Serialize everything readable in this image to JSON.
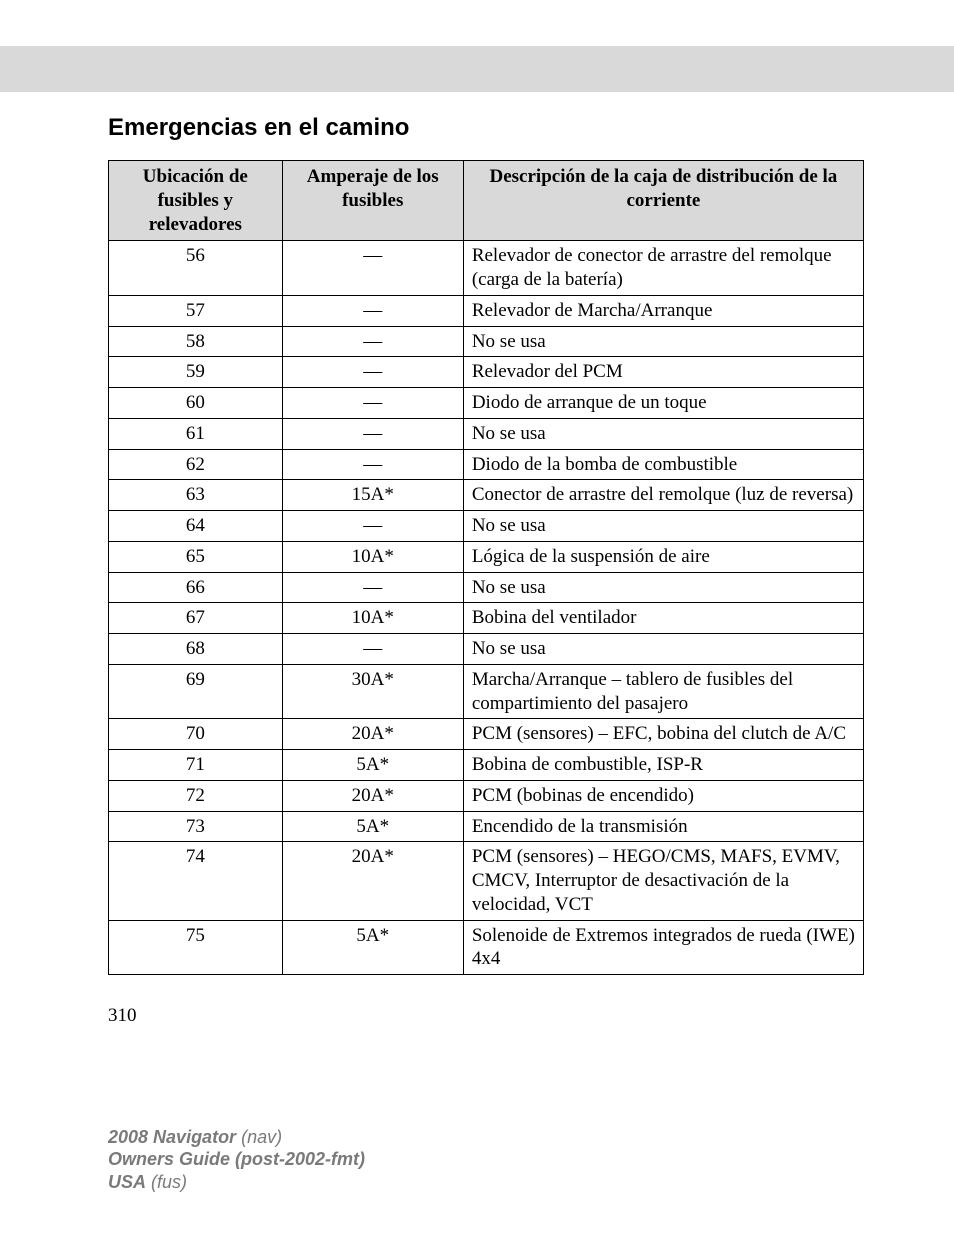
{
  "section_title": "Emergencias en el camino",
  "table": {
    "columns": [
      "Ubicación de fusibles y relevadores",
      "Amperaje de los fusibles",
      "Descripción de la caja de distribución de la corriente"
    ],
    "col_widths_pct": [
      23,
      24,
      53
    ],
    "header_bg": "#d9d9d9",
    "border_color": "#000000",
    "font_size_pt": 14,
    "rows": [
      {
        "loc": "56",
        "amp": "—",
        "desc": "Relevador de conector de arrastre del remolque (carga de la batería)"
      },
      {
        "loc": "57",
        "amp": "—",
        "desc": "Relevador de Marcha/Arranque"
      },
      {
        "loc": "58",
        "amp": "—",
        "desc": "No se usa"
      },
      {
        "loc": "59",
        "amp": "—",
        "desc": "Relevador del PCM"
      },
      {
        "loc": "60",
        "amp": "—",
        "desc": "Diodo de arranque de un toque"
      },
      {
        "loc": "61",
        "amp": "—",
        "desc": "No se usa"
      },
      {
        "loc": "62",
        "amp": "—",
        "desc": "Diodo de la bomba de combustible"
      },
      {
        "loc": "63",
        "amp": "15A*",
        "desc": "Conector de arrastre del remolque (luz de reversa)"
      },
      {
        "loc": "64",
        "amp": "—",
        "desc": "No se usa"
      },
      {
        "loc": "65",
        "amp": "10A*",
        "desc": "Lógica de la suspensión de aire"
      },
      {
        "loc": "66",
        "amp": "—",
        "desc": "No se usa"
      },
      {
        "loc": "67",
        "amp": "10A*",
        "desc": "Bobina del ventilador"
      },
      {
        "loc": "68",
        "amp": "—",
        "desc": "No se usa"
      },
      {
        "loc": "69",
        "amp": "30A*",
        "desc": "Marcha/Arranque – tablero de fusibles del compartimiento del pasajero"
      },
      {
        "loc": "70",
        "amp": "20A*",
        "desc": "PCM (sensores) – EFC, bobina del clutch de A/C"
      },
      {
        "loc": "71",
        "amp": "5A*",
        "desc": "Bobina de combustible, ISP-R"
      },
      {
        "loc": "72",
        "amp": "20A*",
        "desc": "PCM (bobinas de encendido)"
      },
      {
        "loc": "73",
        "amp": "5A*",
        "desc": "Encendido de la transmisión"
      },
      {
        "loc": "74",
        "amp": "20A*",
        "desc": "PCM (sensores) – HEGO/CMS, MAFS, EVMV, CMCV, Interruptor de desactivación de la velocidad, VCT"
      },
      {
        "loc": "75",
        "amp": "5A*",
        "desc": "Solenoide de Extremos integrados de rueda (IWE) 4x4"
      }
    ]
  },
  "page_number": "310",
  "footer": {
    "line1_bold": "2008 Navigator",
    "line1_reg": " (nav)",
    "line2": "Owners Guide (post-2002-fmt)",
    "line3_bold": "USA",
    "line3_reg": " (fus)",
    "color": "#7a7a7a",
    "font_size_pt": 13
  },
  "colors": {
    "background": "#ffffff",
    "text": "#000000",
    "band": "#d9d9d9"
  }
}
